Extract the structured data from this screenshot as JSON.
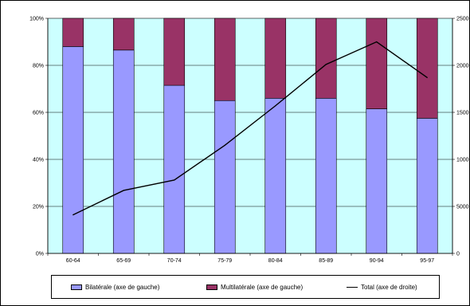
{
  "chart_data": {
    "type": "bar",
    "stacked": true,
    "percent_stacked": true,
    "categories": [
      "60-64",
      "65-69",
      "70-74",
      "75-79",
      "80-84",
      "85-89",
      "90-94",
      "95-97"
    ],
    "series": [
      {
        "name": "Bilatérale  (axe de gauche)",
        "axis": "left",
        "type": "bar",
        "color": "#9999ff",
        "values": [
          88,
          86.5,
          71.5,
          65,
          66,
          66,
          61.5,
          57.5
        ]
      },
      {
        "name": "Multilatérale  (axe de gauche)",
        "axis": "left",
        "type": "bar",
        "color": "#993366",
        "values": [
          12,
          13.5,
          28.5,
          35,
          34,
          34,
          38.5,
          42.5
        ]
      },
      {
        "name": "Total  (axe de droite)",
        "axis": "right",
        "type": "line",
        "color": "#000000",
        "values": [
          4100,
          6700,
          7800,
          11500,
          15700,
          20100,
          22500,
          18700
        ]
      }
    ],
    "y_left": {
      "ylim": [
        0,
        100
      ],
      "ticks": [
        "0%",
        "20%",
        "40%",
        "60%",
        "80%",
        "100%"
      ]
    },
    "y_right": {
      "ylim": [
        0,
        25000
      ],
      "ticks": [
        "0",
        "5000",
        "10000",
        "15000",
        "20000",
        "25000"
      ]
    },
    "plot_background": "#ccffff",
    "gridlines": true,
    "legend_position": "bottom"
  }
}
